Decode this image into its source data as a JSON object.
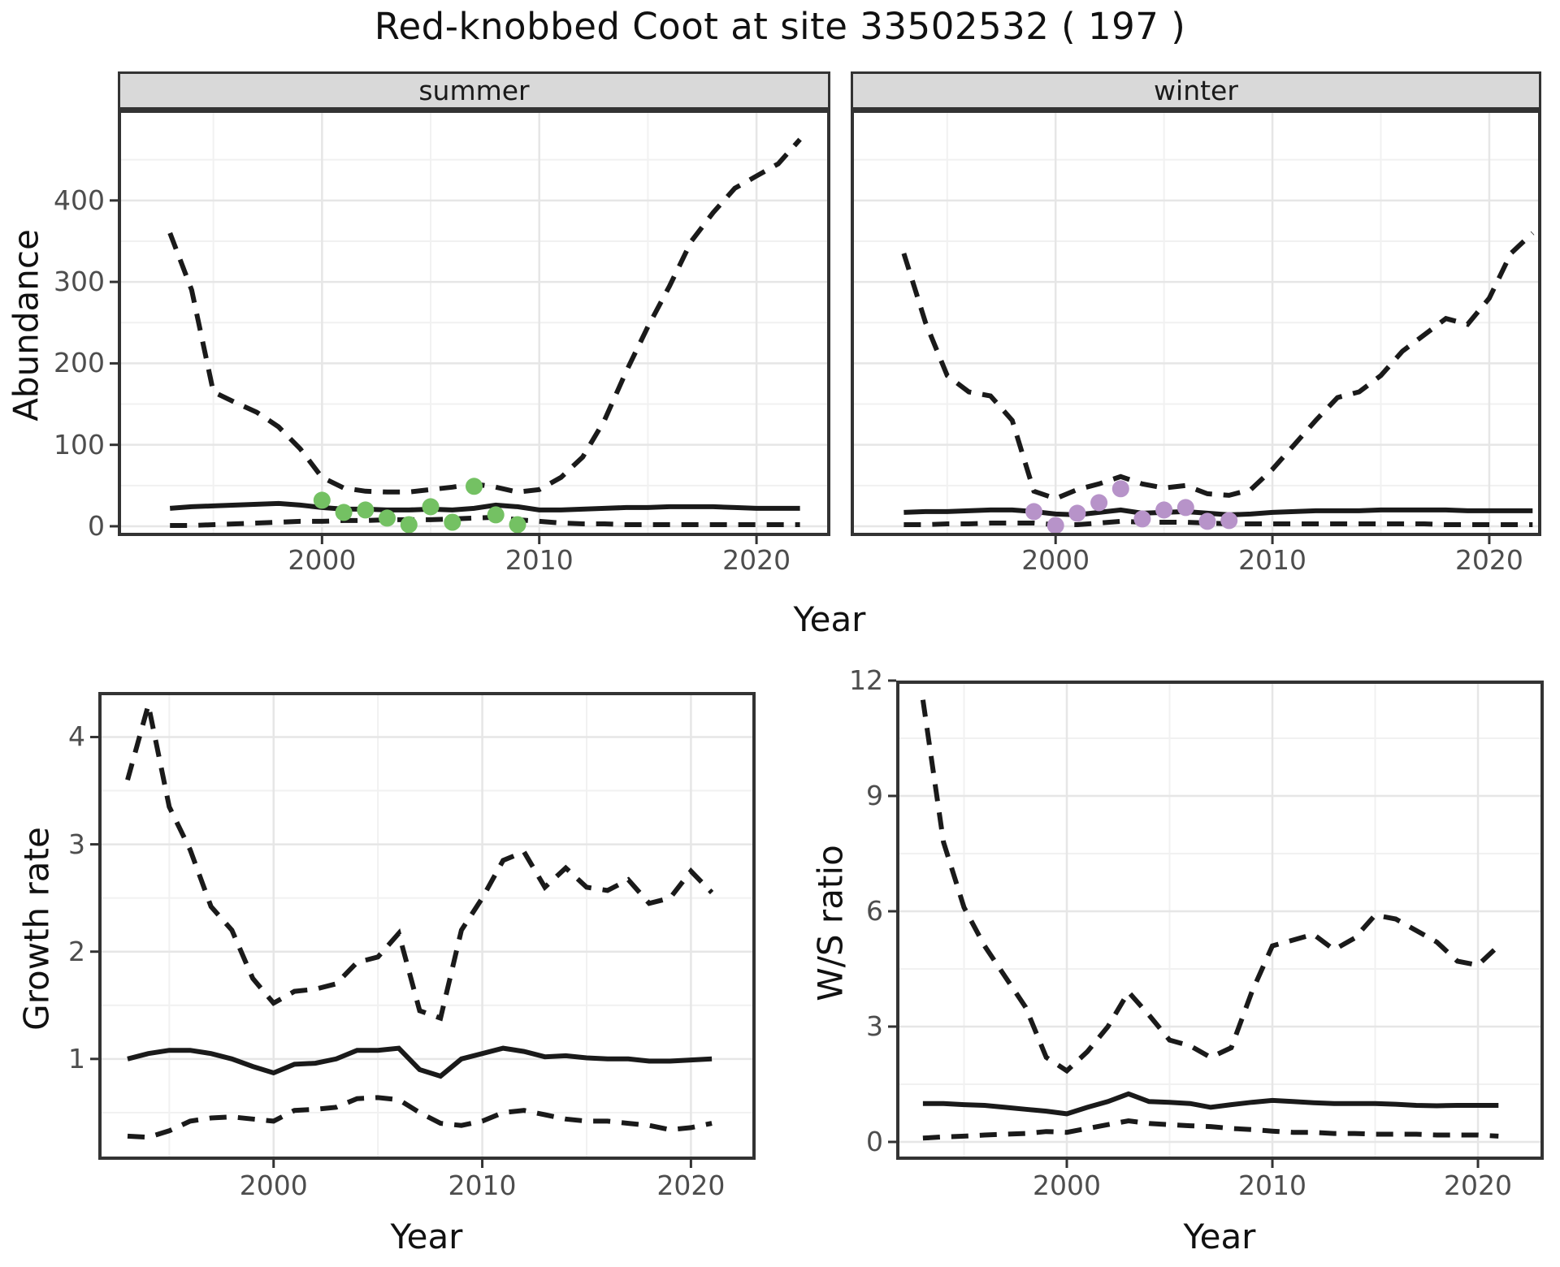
{
  "title": "Red-knobbed Coot at site 33502532 ( 197 )",
  "facets": [
    {
      "label": "summer"
    },
    {
      "label": "winter"
    }
  ],
  "axis_titles": {
    "abundance": "Abundance",
    "year_top": "Year",
    "growth_rate": "Growth rate",
    "year_growth": "Year",
    "ws_ratio": "W/S ratio",
    "year_ws": "Year"
  },
  "colors": {
    "background": "#ffffff",
    "line": "#1a1a1a",
    "summer_points": "#74c163",
    "winter_points": "#b793c9",
    "strip_bg": "#d9d9d9",
    "strip_border": "#333333",
    "panel_border": "#333333",
    "grid_major": "#e6e6e6",
    "grid_minor": "#f1f1f1",
    "tick": "#333333",
    "tick_label": "#4d4d4d"
  },
  "chart_data": [
    {
      "id": "abundance-summer",
      "type": "line",
      "facet": "summer",
      "xlabel": "Year",
      "ylabel": "Abundance",
      "xlim": [
        1990.6,
        2023.4
      ],
      "ylim": [
        -12,
        511.5
      ],
      "x_ticks": [
        2000,
        2010,
        2020
      ],
      "x_minor_ticks": [
        1995,
        2005,
        2015
      ],
      "y_ticks": [
        0,
        100,
        200,
        300,
        400
      ],
      "y_minor_ticks": [
        50,
        150,
        250,
        350,
        450
      ],
      "x": [
        1993,
        1994,
        1995,
        1996,
        1997,
        1998,
        1999,
        2000,
        2001,
        2002,
        2003,
        2004,
        2005,
        2006,
        2007,
        2008,
        2009,
        2010,
        2011,
        2012,
        2013,
        2014,
        2015,
        2016,
        2017,
        2018,
        2019,
        2020,
        2021,
        2022
      ],
      "series": [
        {
          "name": "upper_ci",
          "style": "dashed",
          "values": [
            360,
            290,
            165,
            152,
            140,
            122,
            95,
            60,
            47,
            43,
            42,
            42,
            45,
            48,
            52,
            48,
            42,
            45,
            60,
            85,
            130,
            190,
            245,
            295,
            350,
            385,
            415,
            430,
            445,
            475
          ]
        },
        {
          "name": "median",
          "style": "solid",
          "values": [
            22,
            24,
            25,
            26,
            27,
            28,
            26,
            23,
            21,
            21,
            20,
            20,
            21,
            20,
            22,
            26,
            24,
            20,
            20,
            21,
            22,
            23,
            23,
            24,
            24,
            24,
            23,
            22,
            22,
            22
          ]
        },
        {
          "name": "lower_ci",
          "style": "dashed",
          "values": [
            1,
            1,
            2,
            3,
            4,
            5,
            6,
            6,
            7,
            7,
            8,
            8,
            8,
            9,
            10,
            11,
            8,
            6,
            4,
            3,
            3,
            2,
            2,
            2,
            2,
            2,
            2,
            2,
            2,
            2
          ]
        }
      ],
      "points": {
        "name": "observed_counts_summer",
        "color_key": "summer_points",
        "x": [
          2000,
          2001,
          2002,
          2003,
          2004,
          2005,
          2006,
          2007,
          2008,
          2009
        ],
        "y": [
          32,
          17,
          20,
          10,
          2,
          24,
          5,
          49,
          14,
          2
        ]
      }
    },
    {
      "id": "abundance-winter",
      "type": "line",
      "facet": "winter",
      "xlabel": "Year",
      "ylabel": "Abundance",
      "xlim": [
        1990.55,
        2022.4
      ],
      "ylim": [
        -12,
        511.5
      ],
      "x_ticks": [
        2000,
        2010,
        2020
      ],
      "x_minor_ticks": [
        1995,
        2005,
        2015
      ],
      "y_ticks": [
        0,
        100,
        200,
        300,
        400
      ],
      "y_minor_ticks": [
        50,
        150,
        250,
        350,
        450
      ],
      "x": [
        1993,
        1994,
        1995,
        1996,
        1997,
        1998,
        1999,
        2000,
        2001,
        2002,
        2003,
        2004,
        2005,
        2006,
        2007,
        2008,
        2009,
        2010,
        2011,
        2012,
        2013,
        2014,
        2015,
        2016,
        2017,
        2018,
        2019,
        2020,
        2021,
        2022
      ],
      "series": [
        {
          "name": "upper_ci",
          "style": "dashed",
          "values": [
            335,
            250,
            185,
            165,
            160,
            130,
            43,
            34,
            45,
            52,
            61,
            52,
            47,
            50,
            40,
            38,
            45,
            70,
            100,
            130,
            158,
            165,
            185,
            215,
            235,
            255,
            248,
            280,
            335,
            360
          ]
        },
        {
          "name": "median",
          "style": "solid",
          "values": [
            17,
            18,
            18,
            19,
            20,
            20,
            18,
            15,
            14,
            17,
            20,
            16,
            17,
            18,
            16,
            14,
            15,
            17,
            18,
            19,
            19,
            19,
            20,
            20,
            20,
            20,
            19,
            19,
            19,
            19
          ]
        },
        {
          "name": "lower_ci",
          "style": "dashed",
          "values": [
            2,
            2,
            3,
            3,
            4,
            4,
            4,
            2,
            2,
            4,
            6,
            5,
            5,
            5,
            4,
            3,
            3,
            3,
            3,
            3,
            3,
            3,
            3,
            3,
            3,
            2,
            2,
            2,
            2,
            2
          ]
        }
      ],
      "points": {
        "name": "observed_counts_winter",
        "color_key": "winter_points",
        "x": [
          1999,
          2000,
          2001,
          2002,
          2003,
          2004,
          2005,
          2006,
          2007,
          2008
        ],
        "y": [
          18,
          1,
          16,
          29,
          46,
          9,
          20,
          23,
          6,
          7
        ]
      }
    },
    {
      "id": "growth-rate",
      "type": "line",
      "facet": null,
      "xlabel": "Year",
      "ylabel": "Growth rate",
      "xlim": [
        1991.6,
        2023.1
      ],
      "ylim": [
        0.06,
        4.42
      ],
      "x_ticks": [
        2000,
        2010,
        2020
      ],
      "x_minor_ticks": [
        1995,
        2005,
        2015
      ],
      "y_ticks": [
        1,
        2,
        3,
        4
      ],
      "y_minor_ticks": [
        0.5,
        1.5,
        2.5,
        3.5
      ],
      "x": [
        1993,
        1994,
        1995,
        1996,
        1997,
        1998,
        1999,
        2000,
        2001,
        2002,
        2003,
        2004,
        2005,
        2006,
        2007,
        2008,
        2009,
        2010,
        2011,
        2012,
        2013,
        2014,
        2015,
        2016,
        2017,
        2018,
        2019,
        2020,
        2021
      ],
      "series": [
        {
          "name": "upper_ci",
          "style": "dashed",
          "values": [
            3.6,
            4.3,
            3.35,
            2.95,
            2.42,
            2.2,
            1.75,
            1.52,
            1.63,
            1.65,
            1.7,
            1.9,
            1.95,
            2.17,
            1.45,
            1.38,
            2.2,
            2.5,
            2.85,
            2.93,
            2.6,
            2.78,
            2.6,
            2.57,
            2.67,
            2.45,
            2.5,
            2.75,
            2.55
          ]
        },
        {
          "name": "median",
          "style": "solid",
          "values": [
            1.0,
            1.05,
            1.08,
            1.08,
            1.05,
            1.0,
            0.93,
            0.87,
            0.95,
            0.96,
            1.0,
            1.08,
            1.08,
            1.1,
            0.9,
            0.84,
            1.0,
            1.05,
            1.1,
            1.07,
            1.02,
            1.03,
            1.01,
            1.0,
            1.0,
            0.98,
            0.98,
            0.99,
            1.0
          ]
        },
        {
          "name": "lower_ci",
          "style": "dashed",
          "values": [
            0.28,
            0.27,
            0.33,
            0.42,
            0.45,
            0.46,
            0.44,
            0.42,
            0.52,
            0.53,
            0.55,
            0.63,
            0.64,
            0.62,
            0.5,
            0.4,
            0.38,
            0.42,
            0.5,
            0.52,
            0.48,
            0.44,
            0.42,
            0.42,
            0.4,
            0.38,
            0.34,
            0.36,
            0.4
          ]
        }
      ],
      "points": null
    },
    {
      "id": "ws-ratio",
      "type": "line",
      "facet": null,
      "xlabel": "Year",
      "ylabel": "W/S ratio",
      "xlim": [
        1991.7,
        2023.2
      ],
      "ylim": [
        -0.465,
        12.0
      ],
      "x_ticks": [
        2000,
        2010,
        2020
      ],
      "x_minor_ticks": [
        1995,
        2005,
        2015
      ],
      "y_ticks": [
        0,
        3,
        6,
        9,
        12
      ],
      "y_minor_ticks": [
        1.5,
        4.5,
        7.5,
        10.5
      ],
      "x": [
        1993,
        1994,
        1995,
        1996,
        1997,
        1998,
        1999,
        2000,
        2001,
        2002,
        2003,
        2004,
        2005,
        2006,
        2007,
        2008,
        2009,
        2010,
        2011,
        2012,
        2013,
        2014,
        2015,
        2016,
        2017,
        2018,
        2019,
        2020,
        2021
      ],
      "series": [
        {
          "name": "upper_ci",
          "style": "dashed",
          "values": [
            11.5,
            7.8,
            6.1,
            5.1,
            4.3,
            3.5,
            2.2,
            1.85,
            2.35,
            3.0,
            3.9,
            3.3,
            2.65,
            2.5,
            2.2,
            2.45,
            3.9,
            5.1,
            5.25,
            5.4,
            5.0,
            5.3,
            5.9,
            5.8,
            5.5,
            5.2,
            4.7,
            4.6,
            5.1
          ]
        },
        {
          "name": "median",
          "style": "solid",
          "values": [
            1.0,
            1.0,
            0.97,
            0.95,
            0.9,
            0.85,
            0.8,
            0.73,
            0.9,
            1.05,
            1.25,
            1.05,
            1.03,
            1.0,
            0.9,
            0.97,
            1.03,
            1.08,
            1.05,
            1.02,
            1.0,
            1.0,
            1.0,
            0.98,
            0.95,
            0.94,
            0.95,
            0.95,
            0.95
          ]
        },
        {
          "name": "lower_ci",
          "style": "dashed",
          "values": [
            0.1,
            0.13,
            0.15,
            0.18,
            0.2,
            0.22,
            0.27,
            0.25,
            0.35,
            0.45,
            0.55,
            0.48,
            0.45,
            0.42,
            0.4,
            0.35,
            0.32,
            0.28,
            0.25,
            0.25,
            0.22,
            0.22,
            0.2,
            0.2,
            0.2,
            0.18,
            0.18,
            0.18,
            0.15
          ]
        }
      ],
      "points": null
    }
  ]
}
